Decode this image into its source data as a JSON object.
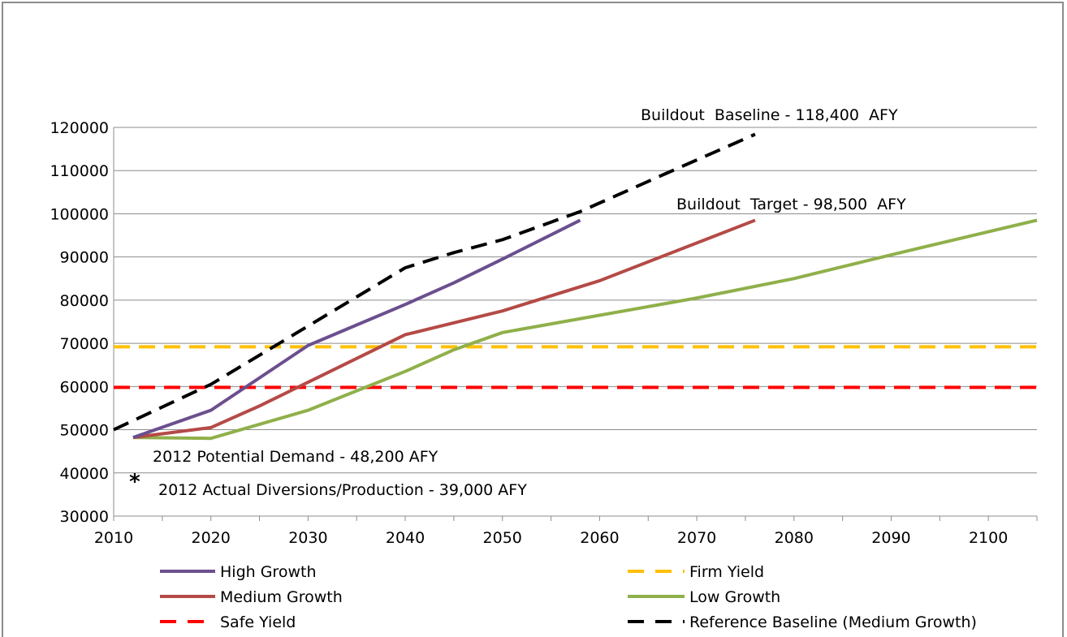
{
  "chart_data": {
    "type": "line",
    "title": "",
    "xlabel": "",
    "ylabel": "",
    "xlim": [
      2010,
      2105
    ],
    "ylim": [
      30000,
      120000
    ],
    "x_ticks": [
      2010,
      2020,
      2030,
      2040,
      2050,
      2060,
      2070,
      2080,
      2090,
      2100
    ],
    "y_ticks": [
      30000,
      40000,
      50000,
      60000,
      70000,
      80000,
      90000,
      100000,
      110000,
      120000
    ],
    "grid": "horizontal",
    "legend_position": "bottom",
    "series": [
      {
        "name": "High Growth",
        "color": "#6b4f8e",
        "style": "solid",
        "x": [
          2012,
          2020,
          2030,
          2040,
          2045,
          2050,
          2058
        ],
        "y": [
          48200,
          54500,
          69500,
          79000,
          84000,
          89500,
          98500
        ]
      },
      {
        "name": "Firm Yield",
        "color": "#ffc000",
        "style": "dashed",
        "x": [
          2010,
          2105
        ],
        "y": [
          69200,
          69200
        ]
      },
      {
        "name": "Medium Growth",
        "color": "#b44a46",
        "style": "solid",
        "x": [
          2012,
          2020,
          2025,
          2030,
          2040,
          2050,
          2060,
          2076
        ],
        "y": [
          48200,
          50500,
          55500,
          61000,
          72000,
          77500,
          84500,
          98500
        ]
      },
      {
        "name": "Low Growth",
        "color": "#8fb04a",
        "style": "solid",
        "x": [
          2012,
          2020,
          2030,
          2040,
          2045,
          2050,
          2060,
          2070,
          2080,
          2090,
          2105
        ],
        "y": [
          48200,
          48000,
          54500,
          63500,
          68500,
          72500,
          76500,
          80500,
          85000,
          90500,
          98500
        ]
      },
      {
        "name": "Safe Yield",
        "color": "#ff0000",
        "style": "dashed",
        "x": [
          2010,
          2105
        ],
        "y": [
          59800,
          59800
        ]
      },
      {
        "name": "Reference Baseline (Medium Growth)",
        "color": "#000000",
        "style": "dashed",
        "x": [
          2010,
          2020,
          2030,
          2040,
          2045,
          2050,
          2058,
          2067,
          2076
        ],
        "y": [
          50000,
          60500,
          74000,
          87500,
          91000,
          94000,
          100500,
          109500,
          118400
        ]
      }
    ],
    "annotations": [
      {
        "text": "Buildout  Baseline - 118,400  AFY"
      },
      {
        "text": "Buildout  Target - 98,500  AFY"
      },
      {
        "text": "2012 Potential Demand - 48,200 AFY"
      },
      {
        "text": "2012 Actual Diversions/Production - 39,000 AFY"
      }
    ],
    "markers": [
      {
        "symbol": "*",
        "x": 2012.5,
        "y": 39000
      }
    ]
  }
}
